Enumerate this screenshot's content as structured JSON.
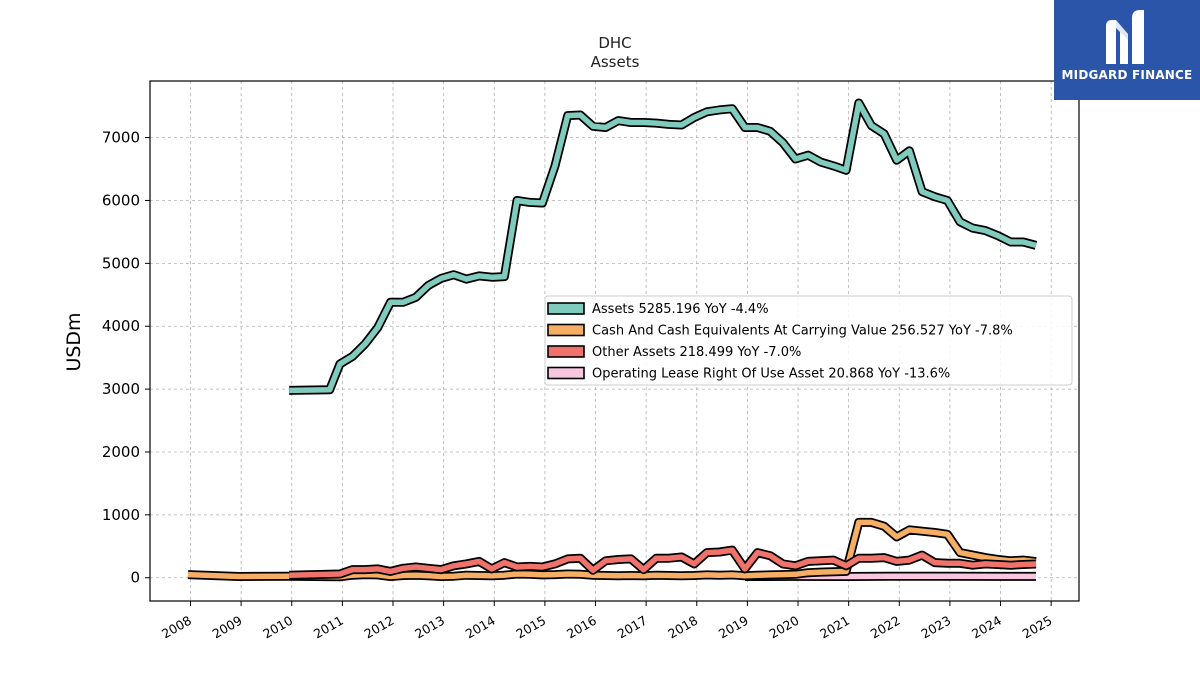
{
  "brand": {
    "name": "MIDGARD FINANCE",
    "bg_color": "#2b55a8"
  },
  "chart_data": {
    "type": "line",
    "title": "DHC",
    "subtitle": "Assets",
    "ylabel": "USDm",
    "xlabel": "",
    "xlim": [
      2007.2,
      2025.55
    ],
    "ylim": [
      -370,
      7900
    ],
    "yticks": [
      0,
      1000,
      2000,
      3000,
      4000,
      5000,
      6000,
      7000
    ],
    "xticks": [
      "2008",
      "2009",
      "2010",
      "2011",
      "2012",
      "2013",
      "2014",
      "2015",
      "2016",
      "2017",
      "2018",
      "2019",
      "2020",
      "2021",
      "2022",
      "2023",
      "2024",
      "2025"
    ],
    "grid": true,
    "legend_position": "center-right",
    "series": [
      {
        "name": "Assets",
        "legend": "Assets  5285.196 YoY -4.4%",
        "color": "#7fcbbd",
        "points": [
          [
            2009.95,
            2980
          ],
          [
            2010.75,
            2990
          ],
          [
            2010.95,
            3400
          ],
          [
            2011.2,
            3520
          ],
          [
            2011.45,
            3720
          ],
          [
            2011.7,
            3980
          ],
          [
            2011.95,
            4380
          ],
          [
            2012.2,
            4380
          ],
          [
            2012.45,
            4460
          ],
          [
            2012.7,
            4650
          ],
          [
            2012.95,
            4760
          ],
          [
            2013.2,
            4820
          ],
          [
            2013.45,
            4750
          ],
          [
            2013.7,
            4800
          ],
          [
            2013.95,
            4780
          ],
          [
            2014.2,
            4790
          ],
          [
            2014.45,
            6000
          ],
          [
            2014.7,
            5970
          ],
          [
            2014.95,
            5960
          ],
          [
            2015.2,
            6550
          ],
          [
            2015.45,
            7350
          ],
          [
            2015.7,
            7360
          ],
          [
            2015.95,
            7180
          ],
          [
            2016.2,
            7160
          ],
          [
            2016.45,
            7270
          ],
          [
            2016.7,
            7240
          ],
          [
            2016.95,
            7240
          ],
          [
            2017.2,
            7230
          ],
          [
            2017.45,
            7210
          ],
          [
            2017.7,
            7200
          ],
          [
            2017.95,
            7320
          ],
          [
            2018.2,
            7410
          ],
          [
            2018.45,
            7440
          ],
          [
            2018.7,
            7460
          ],
          [
            2018.95,
            7160
          ],
          [
            2019.2,
            7160
          ],
          [
            2019.45,
            7100
          ],
          [
            2019.7,
            6920
          ],
          [
            2019.95,
            6660
          ],
          [
            2020.2,
            6720
          ],
          [
            2020.45,
            6610
          ],
          [
            2020.7,
            6550
          ],
          [
            2020.95,
            6480
          ],
          [
            2021.2,
            7550
          ],
          [
            2021.45,
            7190
          ],
          [
            2021.7,
            7060
          ],
          [
            2021.95,
            6640
          ],
          [
            2022.2,
            6790
          ],
          [
            2022.45,
            6140
          ],
          [
            2022.7,
            6060
          ],
          [
            2022.95,
            6000
          ],
          [
            2023.2,
            5660
          ],
          [
            2023.45,
            5560
          ],
          [
            2023.7,
            5520
          ],
          [
            2023.95,
            5440
          ],
          [
            2024.2,
            5340
          ],
          [
            2024.45,
            5340
          ],
          [
            2024.7,
            5285
          ]
        ]
      },
      {
        "name": "Cash And Cash Equivalents At Carrying Value",
        "legend": "Cash And Cash Equivalents At Carrying Value  256.527 YoY -7.8%",
        "color": "#f6ad64",
        "points": [
          [
            2007.95,
            50
          ],
          [
            2008.95,
            20
          ],
          [
            2009.95,
            25
          ],
          [
            2010.95,
            15
          ],
          [
            2011.2,
            40
          ],
          [
            2011.45,
            50
          ],
          [
            2011.7,
            45
          ],
          [
            2011.95,
            20
          ],
          [
            2012.2,
            35
          ],
          [
            2012.45,
            40
          ],
          [
            2012.7,
            30
          ],
          [
            2012.95,
            20
          ],
          [
            2013.2,
            25
          ],
          [
            2013.45,
            40
          ],
          [
            2013.7,
            35
          ],
          [
            2013.95,
            30
          ],
          [
            2014.2,
            40
          ],
          [
            2014.45,
            60
          ],
          [
            2014.7,
            55
          ],
          [
            2014.95,
            45
          ],
          [
            2015.2,
            50
          ],
          [
            2015.45,
            60
          ],
          [
            2015.7,
            55
          ],
          [
            2015.95,
            40
          ],
          [
            2016.2,
            35
          ],
          [
            2016.45,
            30
          ],
          [
            2016.7,
            35
          ],
          [
            2016.95,
            30
          ],
          [
            2017.2,
            40
          ],
          [
            2017.45,
            35
          ],
          [
            2017.7,
            30
          ],
          [
            2017.95,
            35
          ],
          [
            2018.2,
            45
          ],
          [
            2018.45,
            40
          ],
          [
            2018.7,
            45
          ],
          [
            2018.95,
            30
          ],
          [
            2019.2,
            40
          ],
          [
            2019.45,
            45
          ],
          [
            2019.7,
            50
          ],
          [
            2019.95,
            55
          ],
          [
            2020.2,
            80
          ],
          [
            2020.45,
            90
          ],
          [
            2020.7,
            95
          ],
          [
            2020.95,
            100
          ],
          [
            2021.2,
            880
          ],
          [
            2021.45,
            880
          ],
          [
            2021.7,
            820
          ],
          [
            2021.95,
            650
          ],
          [
            2022.2,
            760
          ],
          [
            2022.45,
            740
          ],
          [
            2022.7,
            720
          ],
          [
            2022.95,
            690
          ],
          [
            2023.2,
            400
          ],
          [
            2023.45,
            360
          ],
          [
            2023.7,
            320
          ],
          [
            2023.95,
            290
          ],
          [
            2024.2,
            270
          ],
          [
            2024.45,
            280
          ],
          [
            2024.7,
            257
          ]
        ]
      },
      {
        "name": "Other Assets",
        "legend": "Other Assets  218.499 YoY -7.0%",
        "color": "#f0736b",
        "points": [
          [
            2009.95,
            40
          ],
          [
            2010.95,
            60
          ],
          [
            2011.2,
            130
          ],
          [
            2011.45,
            130
          ],
          [
            2011.7,
            140
          ],
          [
            2011.95,
            100
          ],
          [
            2012.2,
            150
          ],
          [
            2012.45,
            170
          ],
          [
            2012.7,
            150
          ],
          [
            2012.95,
            130
          ],
          [
            2013.2,
            190
          ],
          [
            2013.45,
            220
          ],
          [
            2013.7,
            260
          ],
          [
            2013.95,
            140
          ],
          [
            2014.2,
            240
          ],
          [
            2014.45,
            170
          ],
          [
            2014.7,
            180
          ],
          [
            2014.95,
            170
          ],
          [
            2015.2,
            220
          ],
          [
            2015.45,
            300
          ],
          [
            2015.7,
            310
          ],
          [
            2015.95,
            120
          ],
          [
            2016.2,
            270
          ],
          [
            2016.45,
            290
          ],
          [
            2016.7,
            300
          ],
          [
            2016.95,
            130
          ],
          [
            2017.2,
            310
          ],
          [
            2017.45,
            310
          ],
          [
            2017.7,
            330
          ],
          [
            2017.95,
            220
          ],
          [
            2018.2,
            400
          ],
          [
            2018.45,
            410
          ],
          [
            2018.7,
            440
          ],
          [
            2018.95,
            140
          ],
          [
            2019.2,
            400
          ],
          [
            2019.45,
            350
          ],
          [
            2019.7,
            220
          ],
          [
            2019.95,
            190
          ],
          [
            2020.2,
            260
          ],
          [
            2020.45,
            270
          ],
          [
            2020.7,
            280
          ],
          [
            2020.95,
            190
          ],
          [
            2021.2,
            310
          ],
          [
            2021.45,
            310
          ],
          [
            2021.7,
            320
          ],
          [
            2021.95,
            260
          ],
          [
            2022.2,
            280
          ],
          [
            2022.45,
            360
          ],
          [
            2022.7,
            240
          ],
          [
            2022.95,
            230
          ],
          [
            2023.2,
            230
          ],
          [
            2023.45,
            200
          ],
          [
            2023.7,
            220
          ],
          [
            2023.95,
            210
          ],
          [
            2024.2,
            200
          ],
          [
            2024.45,
            210
          ],
          [
            2024.7,
            218
          ]
        ]
      },
      {
        "name": "Operating Lease Right Of Use Asset",
        "legend": "Operating Lease Right Of Use Asset  20.868 YoY -13.6%",
        "color": "#f9c6e0",
        "points": [
          [
            2018.95,
            20
          ],
          [
            2019.95,
            22
          ],
          [
            2020.95,
            20
          ],
          [
            2021.95,
            24
          ],
          [
            2022.95,
            25
          ],
          [
            2023.95,
            22
          ],
          [
            2024.7,
            21
          ]
        ]
      }
    ]
  }
}
